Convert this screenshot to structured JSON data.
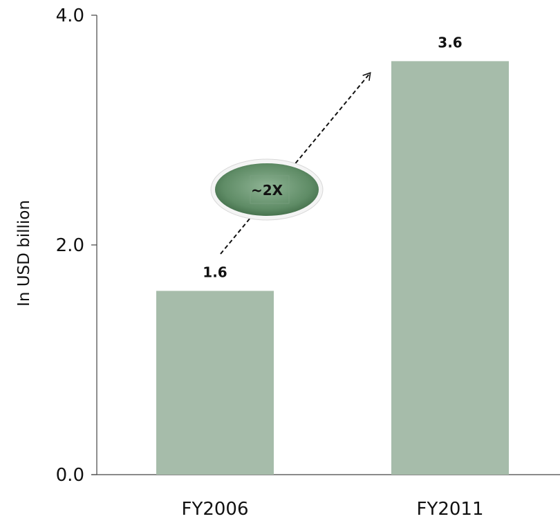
{
  "chart_data": {
    "type": "bar",
    "categories": [
      "FY2006",
      "FY2011"
    ],
    "values": [
      1.6,
      3.6
    ],
    "data_labels": [
      "1.6",
      "3.6"
    ],
    "ylabel": "In USD billion",
    "ylim": [
      0,
      4.0
    ],
    "yticks": [
      0.0,
      2.0,
      4.0
    ],
    "ytick_labels": [
      "0.0",
      "2.0",
      "4.0"
    ],
    "grid": false,
    "legend": "none",
    "bar_color": "#a6bcaa",
    "annotation": {
      "text": "~2X",
      "arrow_from": "FY2006",
      "arrow_to": "FY2011",
      "color": "#5f8c66"
    }
  }
}
